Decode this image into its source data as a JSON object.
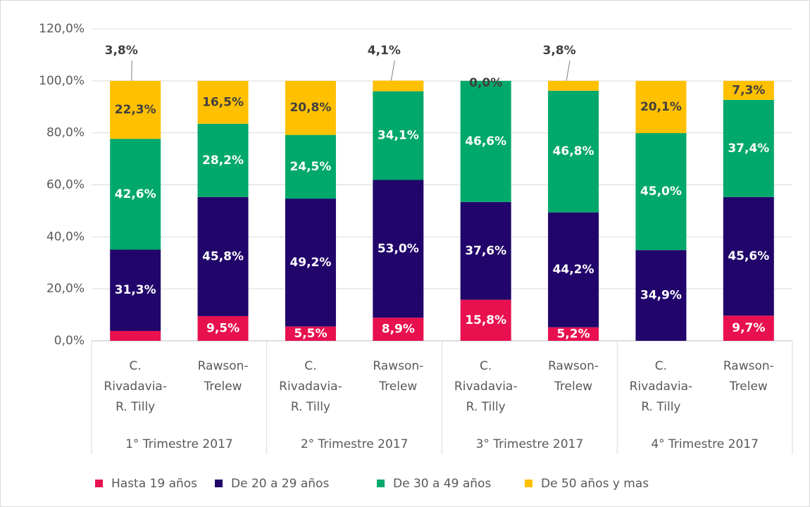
{
  "chart_data": {
    "type": "stacked_bar",
    "categories": [
      [
        "C.",
        "Rivadavia-",
        "R. Tilly"
      ],
      [
        "Rawson-",
        "Trelew"
      ],
      [
        "C.",
        "Rivadavia-",
        "R. Tilly"
      ],
      [
        "Rawson-",
        "Trelew"
      ],
      [
        "C.",
        "Rivadavia-",
        "R. Tilly"
      ],
      [
        "Rawson-",
        "Trelew"
      ],
      [
        "C.",
        "Rivadavia-",
        "R. Tilly"
      ],
      [
        "Rawson-",
        "Trelew"
      ]
    ],
    "groups": [
      "1° Trimestre 2017",
      "2° Trimestre 2017",
      "3° Trimestre 2017",
      "4° Trimestre 2017"
    ],
    "series": [
      {
        "name": "Hasta 19 años",
        "color": "#e8104f",
        "label_color": "#ffffff",
        "values": [
          3.8,
          9.5,
          5.5,
          8.9,
          15.8,
          5.2,
          0,
          9.7
        ],
        "value_labels": [
          "3,8%",
          "9,5%",
          "5,5%",
          "8,9%",
          "15,8%",
          "5,2%",
          null,
          "9,7%"
        ]
      },
      {
        "name": "De 20 a 29 años",
        "color": "#21056b",
        "label_color": "#ffffff",
        "values": [
          31.3,
          45.8,
          49.2,
          53.0,
          37.6,
          44.2,
          34.9,
          45.6
        ],
        "value_labels": [
          "31,3%",
          "45,8%",
          "49,2%",
          "53,0%",
          "37,6%",
          "44,2%",
          "34,9%",
          "45,6%"
        ]
      },
      {
        "name": "De 30 a 49 años",
        "color": "#00a86b",
        "label_color": "#ffffff",
        "values": [
          42.6,
          28.2,
          24.5,
          34.1,
          46.6,
          46.8,
          45.0,
          37.4
        ],
        "value_labels": [
          "42,6%",
          "28,2%",
          "24,5%",
          "34,1%",
          "46,6%",
          "46,8%",
          "45,0%",
          "37,4%"
        ]
      },
      {
        "name": "De 50 años y mas",
        "color": "#ffc000",
        "label_color": "#404040",
        "values": [
          22.3,
          16.5,
          20.8,
          4.1,
          0.0,
          3.8,
          20.1,
          7.3
        ],
        "value_labels": [
          "22,3%",
          "16,5%",
          "20,8%",
          "4,1%",
          "0,0%",
          "3,8%",
          "20,1%",
          "7,3%"
        ]
      }
    ],
    "ylim": [
      0,
      120
    ],
    "yticks": [
      {
        "value": 0,
        "label": "0,0%"
      },
      {
        "value": 20,
        "label": "20,0%"
      },
      {
        "value": 40,
        "label": "40,0%"
      },
      {
        "value": 60,
        "label": "60,0%"
      },
      {
        "value": 80,
        "label": "80,0%"
      },
      {
        "value": 100,
        "label": "100,0%"
      },
      {
        "value": 120,
        "label": "120,0%"
      }
    ],
    "grid": true
  }
}
